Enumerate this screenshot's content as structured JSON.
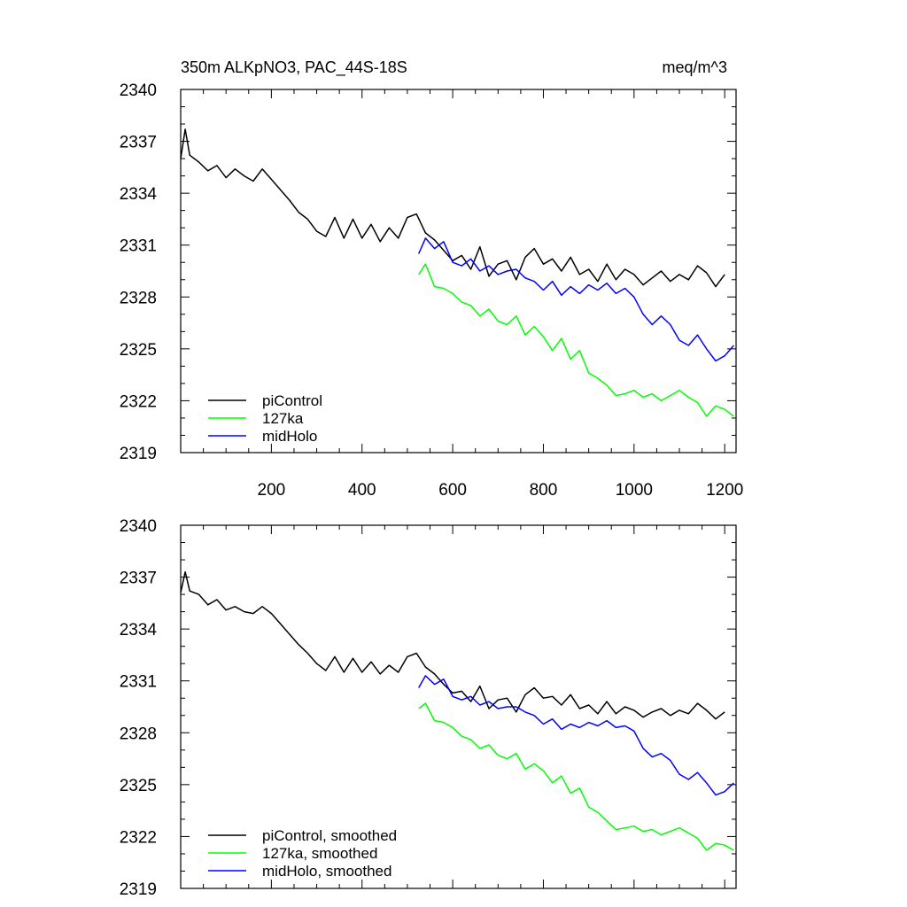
{
  "figure": {
    "title_left": "350m ALKpNO3, PAC_44S-18S",
    "title_right": "meq/m^3"
  },
  "chart_data": [
    {
      "type": "line",
      "xlim": [
        0,
        1225
      ],
      "ylim": [
        2319,
        2340
      ],
      "x_ticks": [
        200,
        400,
        600,
        800,
        1000,
        1200
      ],
      "x_tick_labels": [
        "200",
        "400",
        "600",
        "800",
        "1000",
        "1200"
      ],
      "y_ticks": [
        2319,
        2322,
        2325,
        2328,
        2331,
        2334,
        2337,
        2340
      ],
      "y_tick_labels": [
        "2319",
        "2322",
        "2325",
        "2328",
        "2331",
        "2334",
        "2337",
        "2340"
      ],
      "legend_position": "bottom-left",
      "series": [
        {
          "name": "piControl",
          "color": "#000000",
          "x": [
            0,
            10,
            20,
            40,
            60,
            80,
            100,
            120,
            140,
            160,
            180,
            200,
            220,
            240,
            260,
            280,
            300,
            320,
            340,
            360,
            380,
            400,
            420,
            440,
            460,
            480,
            500,
            520,
            540,
            560,
            580,
            600,
            620,
            640,
            660,
            680,
            700,
            720,
            740,
            760,
            780,
            800,
            820,
            840,
            860,
            880,
            900,
            920,
            940,
            960,
            980,
            1000,
            1020,
            1040,
            1060,
            1080,
            1100,
            1120,
            1140,
            1160,
            1180,
            1200
          ],
          "y": [
            2336.0,
            2337.7,
            2336.2,
            2335.8,
            2335.3,
            2335.6,
            2334.9,
            2335.4,
            2335.0,
            2334.7,
            2335.4,
            2334.8,
            2334.2,
            2333.6,
            2332.9,
            2332.5,
            2331.8,
            2331.5,
            2332.6,
            2331.4,
            2332.5,
            2331.4,
            2332.2,
            2331.2,
            2332.0,
            2331.4,
            2332.6,
            2332.8,
            2331.7,
            2331.3,
            2330.7,
            2330.1,
            2330.4,
            2329.6,
            2330.9,
            2329.2,
            2329.9,
            2330.1,
            2329.0,
            2330.3,
            2330.8,
            2329.9,
            2330.2,
            2329.5,
            2330.3,
            2329.3,
            2329.6,
            2328.9,
            2329.9,
            2329.0,
            2329.6,
            2329.3,
            2328.7,
            2329.1,
            2329.5,
            2328.9,
            2329.3,
            2329.0,
            2329.8,
            2329.4,
            2328.6,
            2329.3
          ]
        },
        {
          "name": "127ka",
          "color": "#00ff00",
          "x": [
            525,
            540,
            560,
            580,
            600,
            620,
            640,
            660,
            680,
            700,
            720,
            740,
            760,
            780,
            800,
            820,
            840,
            860,
            880,
            900,
            920,
            940,
            960,
            980,
            1000,
            1020,
            1040,
            1060,
            1080,
            1100,
            1120,
            1140,
            1160,
            1180,
            1200,
            1220
          ],
          "y": [
            2329.3,
            2329.9,
            2328.6,
            2328.5,
            2328.2,
            2327.7,
            2327.5,
            2326.9,
            2327.3,
            2326.6,
            2326.4,
            2326.9,
            2325.8,
            2326.3,
            2325.7,
            2324.9,
            2325.6,
            2324.4,
            2324.9,
            2323.6,
            2323.3,
            2322.9,
            2322.3,
            2322.4,
            2322.6,
            2322.2,
            2322.4,
            2322.0,
            2322.3,
            2322.6,
            2322.2,
            2321.9,
            2321.1,
            2321.7,
            2321.5,
            2321.1
          ]
        },
        {
          "name": "midHolo",
          "color": "#0000ff",
          "x": [
            525,
            540,
            560,
            580,
            600,
            620,
            640,
            660,
            680,
            700,
            720,
            740,
            760,
            780,
            800,
            820,
            840,
            860,
            880,
            900,
            920,
            940,
            960,
            980,
            1000,
            1020,
            1040,
            1060,
            1080,
            1100,
            1120,
            1140,
            1160,
            1180,
            1200,
            1220
          ],
          "y": [
            2330.5,
            2331.4,
            2330.8,
            2331.2,
            2330.0,
            2329.8,
            2330.2,
            2329.5,
            2329.8,
            2329.3,
            2329.5,
            2329.6,
            2329.1,
            2328.9,
            2328.4,
            2328.9,
            2328.1,
            2328.6,
            2328.2,
            2328.7,
            2328.4,
            2328.8,
            2328.2,
            2328.5,
            2328.0,
            2327.0,
            2326.4,
            2326.9,
            2326.4,
            2325.5,
            2325.2,
            2325.8,
            2325.0,
            2324.3,
            2324.6,
            2325.2
          ]
        }
      ]
    },
    {
      "type": "line",
      "xlim": [
        0,
        1225
      ],
      "ylim": [
        2319,
        2340
      ],
      "x_ticks": [
        200,
        400,
        600,
        800,
        1000,
        1200
      ],
      "x_tick_labels": [],
      "y_ticks": [
        2319,
        2322,
        2325,
        2328,
        2331,
        2334,
        2337,
        2340
      ],
      "y_tick_labels": [
        "2319",
        "2322",
        "2325",
        "2328",
        "2331",
        "2334",
        "2337",
        "2340"
      ],
      "legend_position": "bottom-left",
      "series": [
        {
          "name": "piControl, smoothed",
          "color": "#000000",
          "x": [
            0,
            10,
            20,
            40,
            60,
            80,
            100,
            120,
            140,
            160,
            180,
            200,
            220,
            240,
            260,
            280,
            300,
            320,
            340,
            360,
            380,
            400,
            420,
            440,
            460,
            480,
            500,
            520,
            540,
            560,
            580,
            600,
            620,
            640,
            660,
            680,
            700,
            720,
            740,
            760,
            780,
            800,
            820,
            840,
            860,
            880,
            900,
            920,
            940,
            960,
            980,
            1000,
            1020,
            1040,
            1060,
            1080,
            1100,
            1120,
            1140,
            1160,
            1180,
            1200
          ],
          "y": [
            2336.1,
            2337.3,
            2336.2,
            2336.0,
            2335.4,
            2335.7,
            2335.1,
            2335.3,
            2335.0,
            2334.9,
            2335.3,
            2334.9,
            2334.3,
            2333.7,
            2333.1,
            2332.6,
            2332.0,
            2331.6,
            2332.4,
            2331.5,
            2332.3,
            2331.5,
            2332.1,
            2331.4,
            2331.9,
            2331.5,
            2332.4,
            2332.6,
            2331.8,
            2331.4,
            2330.8,
            2330.3,
            2330.4,
            2329.8,
            2330.7,
            2329.4,
            2329.9,
            2330.0,
            2329.2,
            2330.2,
            2330.6,
            2330.0,
            2330.1,
            2329.6,
            2330.2,
            2329.4,
            2329.6,
            2329.1,
            2329.8,
            2329.1,
            2329.5,
            2329.3,
            2328.9,
            2329.2,
            2329.4,
            2329.0,
            2329.3,
            2329.1,
            2329.7,
            2329.3,
            2328.8,
            2329.2
          ]
        },
        {
          "name": "127ka, smoothed",
          "color": "#00ff00",
          "x": [
            525,
            540,
            560,
            580,
            600,
            620,
            640,
            660,
            680,
            700,
            720,
            740,
            760,
            780,
            800,
            820,
            840,
            860,
            880,
            900,
            920,
            940,
            960,
            980,
            1000,
            1020,
            1040,
            1060,
            1080,
            1100,
            1120,
            1140,
            1160,
            1180,
            1200,
            1220
          ],
          "y": [
            2329.4,
            2329.7,
            2328.7,
            2328.6,
            2328.3,
            2327.8,
            2327.6,
            2327.1,
            2327.3,
            2326.7,
            2326.5,
            2326.8,
            2325.9,
            2326.2,
            2325.8,
            2325.1,
            2325.5,
            2324.5,
            2324.8,
            2323.7,
            2323.4,
            2322.9,
            2322.4,
            2322.5,
            2322.6,
            2322.3,
            2322.4,
            2322.1,
            2322.3,
            2322.5,
            2322.2,
            2321.9,
            2321.2,
            2321.6,
            2321.5,
            2321.2
          ]
        },
        {
          "name": "midHolo, smoothed",
          "color": "#0000ff",
          "x": [
            525,
            540,
            560,
            580,
            600,
            620,
            640,
            660,
            680,
            700,
            720,
            740,
            760,
            780,
            800,
            820,
            840,
            860,
            880,
            900,
            920,
            940,
            960,
            980,
            1000,
            1020,
            1040,
            1060,
            1080,
            1100,
            1120,
            1140,
            1160,
            1180,
            1200,
            1220
          ],
          "y": [
            2330.6,
            2331.3,
            2330.8,
            2331.1,
            2330.1,
            2329.9,
            2330.1,
            2329.6,
            2329.8,
            2329.4,
            2329.5,
            2329.5,
            2329.2,
            2329.0,
            2328.5,
            2328.8,
            2328.2,
            2328.5,
            2328.3,
            2328.6,
            2328.4,
            2328.7,
            2328.3,
            2328.4,
            2328.1,
            2327.1,
            2326.6,
            2326.8,
            2326.4,
            2325.6,
            2325.3,
            2325.7,
            2325.1,
            2324.4,
            2324.6,
            2325.1
          ]
        }
      ]
    }
  ]
}
